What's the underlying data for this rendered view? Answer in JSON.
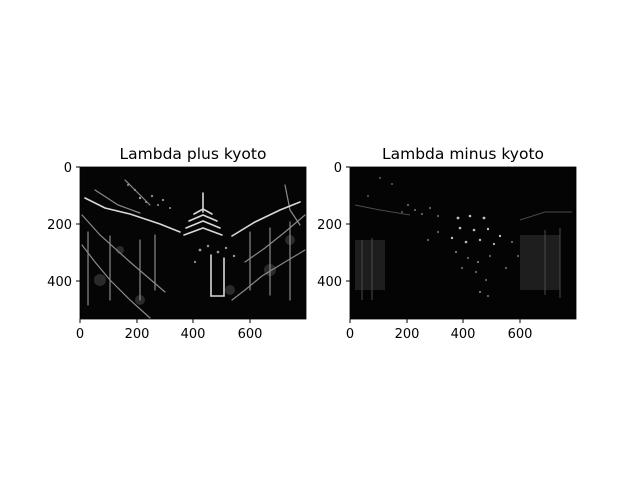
{
  "panels": [
    {
      "title": "Lambda plus kyoto",
      "x_ticks": [
        "0",
        "200",
        "400",
        "600"
      ],
      "y_ticks": [
        "0",
        "200",
        "400"
      ],
      "x_range": [
        0,
        800
      ],
      "y_range": [
        0,
        533
      ]
    },
    {
      "title": "Lambda minus kyoto",
      "x_ticks": [
        "0",
        "200",
        "400",
        "600"
      ],
      "y_ticks": [
        "0",
        "200",
        "400"
      ],
      "x_range": [
        0,
        800
      ],
      "y_range": [
        0,
        533
      ]
    }
  ],
  "colors": {
    "image_background": "#050505",
    "edge": "#cfcfcf",
    "axis": "#000000"
  }
}
